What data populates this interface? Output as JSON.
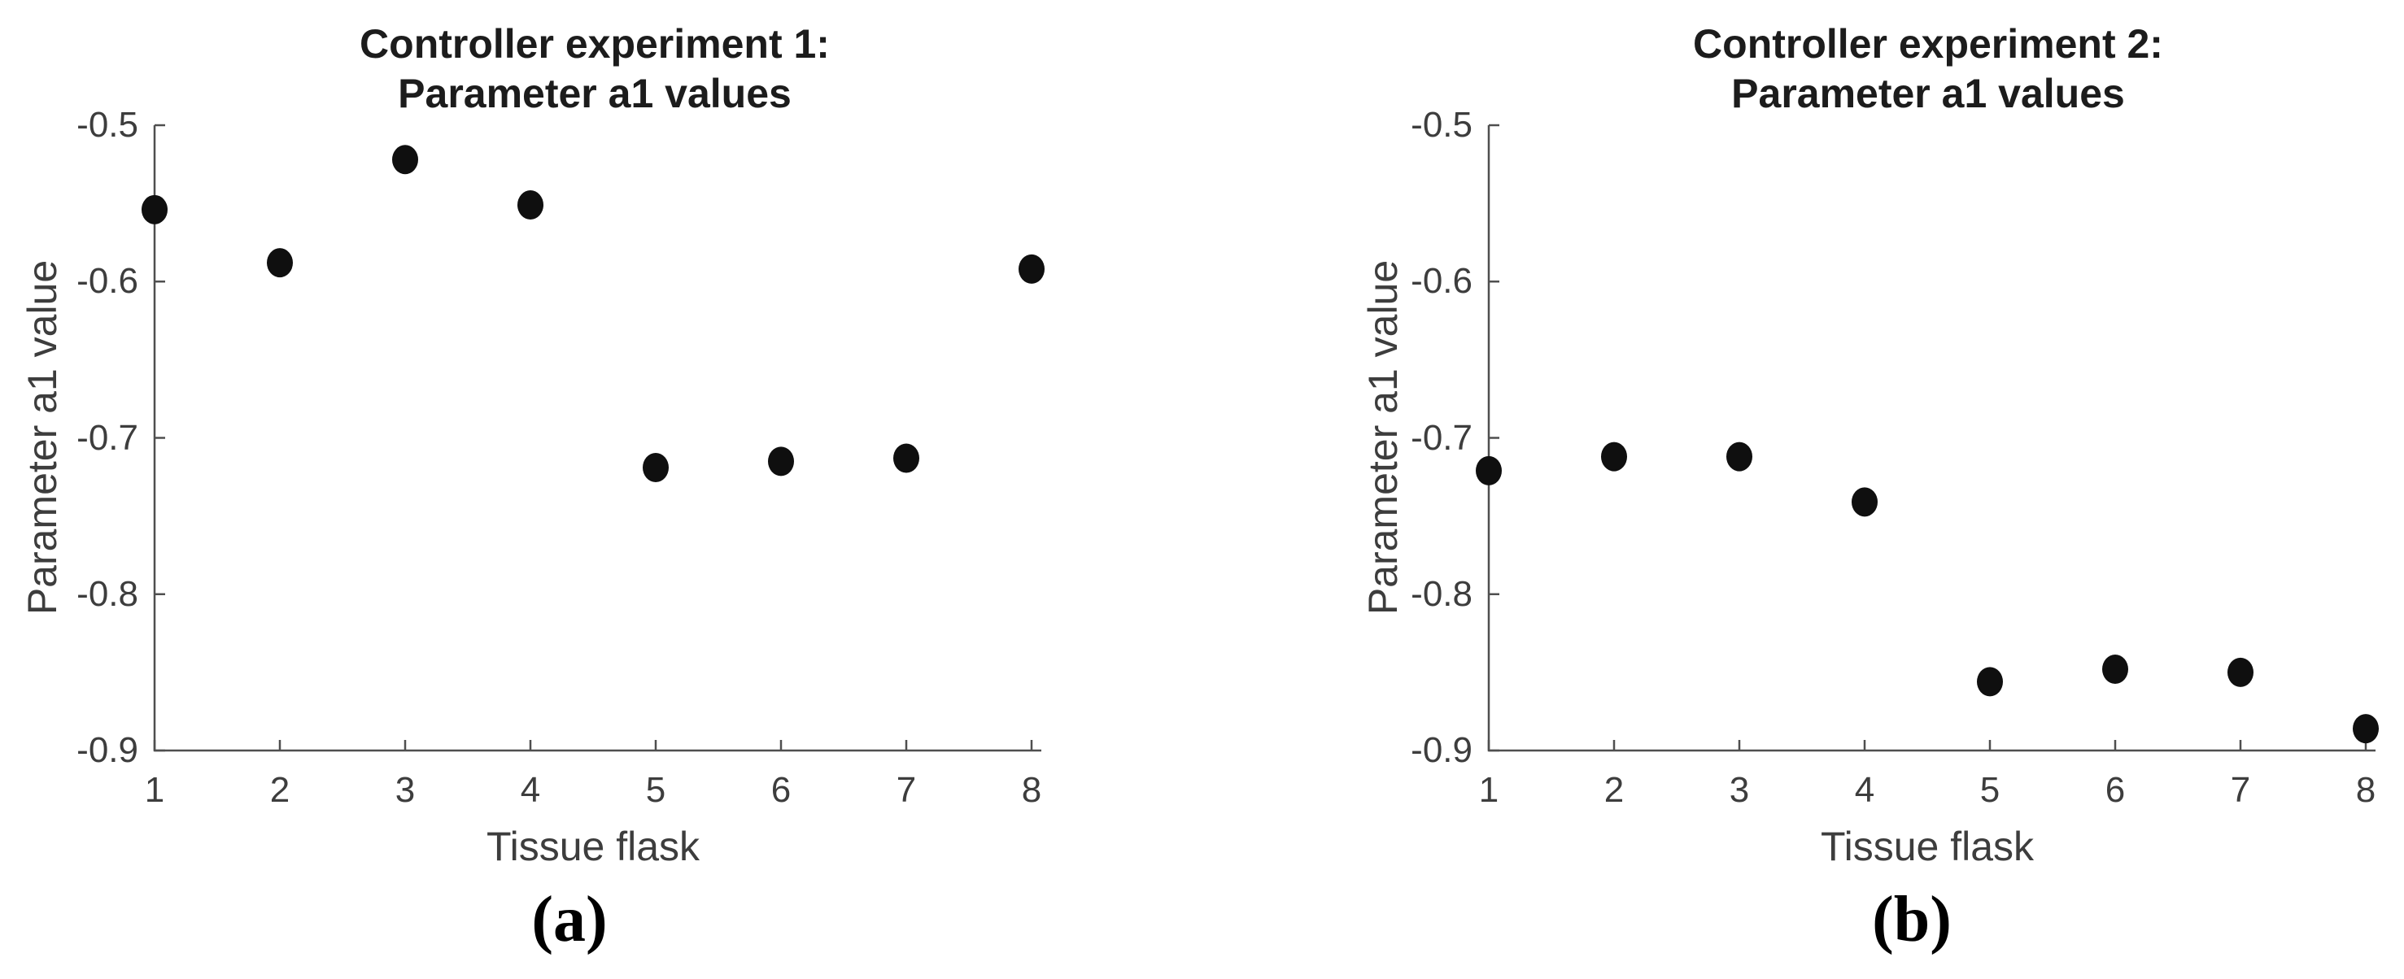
{
  "figure": {
    "background": "#ffffff",
    "axis_color": "#4f4f4f",
    "tick_label_color": "#3d3d3d",
    "title_color": "#1c1c1c",
    "marker_color": "#0f0f0f"
  },
  "chart_data": [
    {
      "id": "a",
      "type": "scatter",
      "title_lines": [
        "Controller experiment 1:",
        "Parameter a1 values"
      ],
      "xlabel": "Tissue flask",
      "ylabel": "Parameter a1 value",
      "caption": "(a)",
      "x": [
        1,
        2,
        3,
        4,
        5,
        6,
        7,
        8
      ],
      "y": [
        -0.554,
        -0.588,
        -0.522,
        -0.551,
        -0.719,
        -0.715,
        -0.713,
        -0.592
      ],
      "xlim": [
        1,
        8
      ],
      "ylim": [
        -0.9,
        -0.5
      ],
      "xticks": [
        1,
        2,
        3,
        4,
        5,
        6,
        7,
        8
      ],
      "xtick_labels": [
        "1",
        "2",
        "3",
        "4",
        "5",
        "6",
        "7",
        "8"
      ],
      "yticks": [
        -0.5,
        -0.6,
        -0.7,
        -0.8,
        -0.9
      ],
      "ytick_labels": [
        "-0.5",
        "-0.6",
        "-0.7",
        "-0.8",
        "-0.9"
      ],
      "grid": false,
      "legend": null
    },
    {
      "id": "b",
      "type": "scatter",
      "title_lines": [
        "Controller experiment 2:",
        "Parameter a1 values"
      ],
      "xlabel": "Tissue flask",
      "ylabel": "Parameter a1 value",
      "caption": "(b)",
      "x": [
        1,
        2,
        3,
        4,
        5,
        6,
        7,
        8
      ],
      "y": [
        -0.721,
        -0.712,
        -0.712,
        -0.741,
        -0.856,
        -0.848,
        -0.85,
        -0.886
      ],
      "xlim": [
        1,
        8
      ],
      "ylim": [
        -0.9,
        -0.5
      ],
      "xticks": [
        1,
        2,
        3,
        4,
        5,
        6,
        7,
        8
      ],
      "xtick_labels": [
        "1",
        "2",
        "3",
        "4",
        "5",
        "6",
        "7",
        "8"
      ],
      "yticks": [
        -0.5,
        -0.6,
        -0.7,
        -0.8,
        -0.9
      ],
      "ytick_labels": [
        "-0.5",
        "-0.6",
        "-0.7",
        "-0.8",
        "-0.9"
      ],
      "grid": false,
      "legend": null
    }
  ]
}
